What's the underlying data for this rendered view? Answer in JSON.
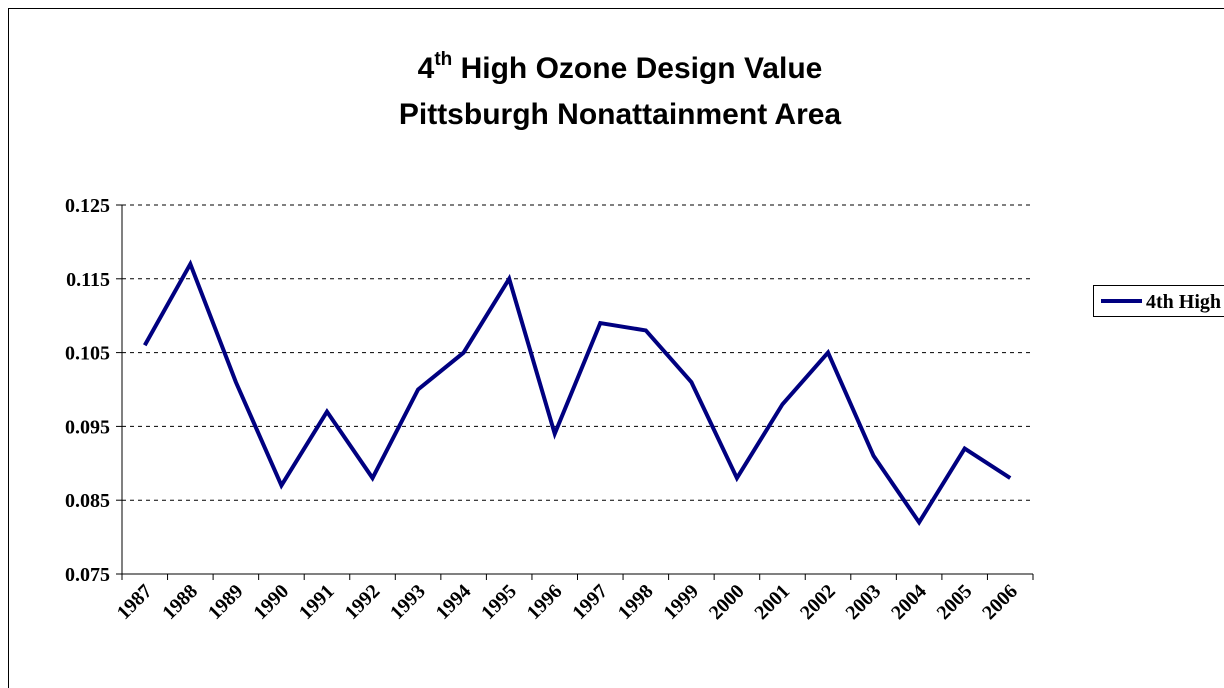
{
  "chart_data": {
    "type": "line",
    "title": [
      [
        "4",
        "th",
        " High Ozone Design Value"
      ],
      "Pittsburgh Nonattainment Area"
    ],
    "categories": [
      "1987",
      "1988",
      "1989",
      "1990",
      "1991",
      "1992",
      "1993",
      "1994",
      "1995",
      "1996",
      "1997",
      "1998",
      "1999",
      "2000",
      "2001",
      "2002",
      "2003",
      "2004",
      "2005",
      "2006"
    ],
    "series": [
      {
        "name": "4th High",
        "color": "#000080",
        "values": [
          0.106,
          0.117,
          0.101,
          0.087,
          0.097,
          0.088,
          0.1,
          0.105,
          0.115,
          0.094,
          0.109,
          0.108,
          0.101,
          0.088,
          0.098,
          0.105,
          0.091,
          0.082,
          0.092,
          0.088
        ]
      }
    ],
    "ylim": [
      0.075,
      0.125
    ],
    "yticks": [
      0.075,
      0.085,
      0.095,
      0.105,
      0.115,
      0.125
    ],
    "grid": true,
    "legend": "right"
  }
}
